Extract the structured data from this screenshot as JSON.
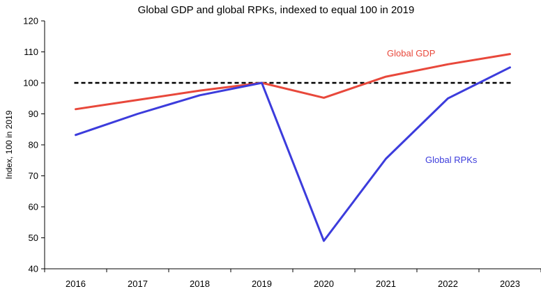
{
  "chart_data": {
    "type": "line",
    "title": "Global GDP and global RPKs, indexed to equal 100 in 2019",
    "xlabel": "",
    "ylabel": "Index, 100 in 2019",
    "categories": [
      "2016",
      "2017",
      "2018",
      "2019",
      "2020",
      "2021",
      "2022",
      "2023"
    ],
    "ylim": [
      40,
      120
    ],
    "yticks": [
      40,
      50,
      60,
      70,
      80,
      90,
      100,
      110,
      120
    ],
    "ytick_labels": [
      "40",
      "50",
      "60",
      "70",
      "80",
      "90",
      "100",
      "110",
      "120"
    ],
    "grid": false,
    "reference_line": {
      "value": 100,
      "color": "#000000",
      "style": "dashed"
    },
    "series": [
      {
        "name": "Global GDP",
        "color": "#e8483b",
        "values": [
          91.5,
          94.5,
          97.5,
          100,
          95.2,
          102,
          106,
          109.3
        ]
      },
      {
        "name": "Global RPKs",
        "color": "#3c3cdc",
        "values": [
          83.2,
          90,
          96,
          100,
          49,
          75.5,
          95,
          105
        ]
      }
    ]
  }
}
